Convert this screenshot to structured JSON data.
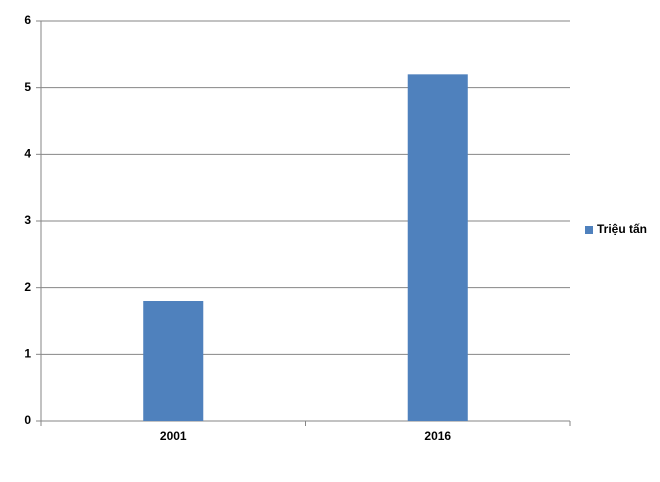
{
  "chart_data": {
    "type": "bar",
    "categories": [
      "2001",
      "2016"
    ],
    "series": [
      {
        "name": "Triệu tấn",
        "color": "#4f81bd",
        "values": [
          1.8,
          5.2
        ]
      }
    ],
    "ylim": [
      0,
      6
    ],
    "yticks": [
      0,
      1,
      2,
      3,
      4,
      5,
      6
    ],
    "grid": true,
    "legend": "right"
  }
}
